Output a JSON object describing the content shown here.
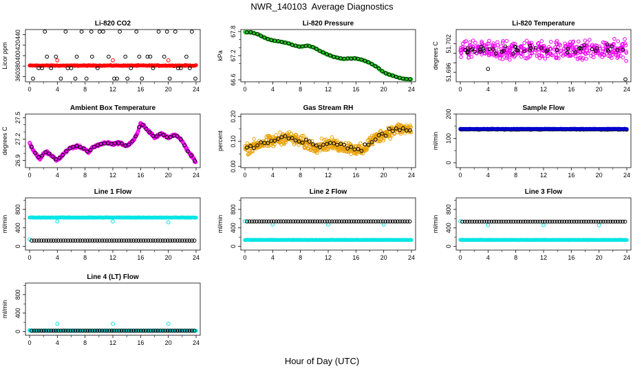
{
  "page": {
    "title": "NWR_140103  Average Diagnostics",
    "x_caption": "Hour of Day (UTC)"
  },
  "chart_data": [
    {
      "type": "scatter",
      "title": "Li-820 CO2",
      "ylabel": "Licor ppm",
      "xlim": [
        0,
        24
      ],
      "ylim": [
        350,
        450
      ],
      "yticks": [
        "360",
        "380",
        "400",
        "420",
        "440"
      ],
      "xticks": [
        "0",
        "4",
        "8",
        "12",
        "16",
        "20",
        "24"
      ],
      "series": [
        {
          "color": "#ff0000",
          "pattern": "dense-flat",
          "x_range": [
            0,
            24
          ],
          "level": 381,
          "noise": 1.2
        },
        {
          "color": "#ff0000",
          "pattern": "points",
          "x": [
            4,
            12,
            20
          ],
          "y": [
            391,
            391,
            391
          ]
        },
        {
          "color": "#000000",
          "pattern": "points",
          "x": [
            0.5,
            1.3,
            2.2,
            3.1,
            3.8,
            4.5,
            5.2,
            6.0,
            6.8,
            7.5,
            8.2,
            9.0,
            9.8,
            10.6,
            11.4,
            12.2,
            13.0,
            13.8,
            14.6,
            15.4,
            16.2,
            17.0,
            17.8,
            18.6,
            19.4,
            20.2,
            21.0,
            21.8,
            22.6,
            23.4,
            23.9,
            2.5,
            5.5,
            8.9,
            12.6,
            15.8,
            19.8,
            23.1,
            1.8,
            6.6,
            10.1,
            14.1,
            17.4,
            21.4
          ],
          "y": [
            356,
            376,
            446,
            376,
            398,
            356,
            446,
            376,
            398,
            446,
            356,
            398,
            376,
            446,
            398,
            356,
            446,
            398,
            376,
            446,
            356,
            398,
            376,
            446,
            398,
            356,
            446,
            376,
            398,
            446,
            356,
            398,
            376,
            446,
            356,
            398,
            446,
            376,
            376,
            356,
            446,
            356,
            398,
            376
          ]
        }
      ]
    },
    {
      "type": "scatter",
      "title": "Li-820 Pressure",
      "ylabel": "kPa",
      "xlim": [
        0,
        24
      ],
      "ylim": [
        66.55,
        67.85
      ],
      "yticks": [
        "66.6",
        "67.2",
        "67.8"
      ],
      "yticks_minor": [
        "67.0",
        "67.4",
        "67.6"
      ],
      "xticks": [
        "0",
        "4",
        "8",
        "12",
        "16",
        "20",
        "24"
      ],
      "series": [
        {
          "color": "#22cc22",
          "pattern": "dense-curve",
          "curve_x": [
            0,
            1,
            2,
            3,
            4,
            5,
            6,
            7,
            8,
            9,
            10,
            11,
            12,
            13,
            14,
            15,
            16,
            17,
            18,
            19,
            20,
            21,
            22,
            23,
            24
          ],
          "curve_y": [
            67.78,
            67.78,
            67.72,
            67.63,
            67.58,
            67.55,
            67.52,
            67.46,
            67.42,
            67.45,
            67.4,
            67.3,
            67.22,
            67.16,
            67.12,
            67.13,
            67.13,
            67.09,
            67.02,
            66.92,
            66.78,
            66.72,
            66.66,
            66.62,
            66.61
          ],
          "noise": 0.015
        },
        {
          "color": "#000000",
          "pattern": "sparse-curve",
          "step": 0.5,
          "noise": 0.01
        }
      ]
    },
    {
      "type": "scatter",
      "title": "Li-820 Temperature",
      "ylabel": "degrees C",
      "xlim": [
        0,
        24
      ],
      "ylim": [
        51.694,
        51.705
      ],
      "yticks": [
        "51.696",
        "51.698",
        "51.700",
        "51.702"
      ],
      "ytick_show": [
        true,
        false,
        false,
        true
      ],
      "xticks": [
        "0",
        "4",
        "8",
        "12",
        "16",
        "20",
        "24"
      ],
      "series": [
        {
          "color": "#ee00ee",
          "pattern": "dense-cloud",
          "center": 51.7007,
          "spread": 0.0028,
          "count": 420
        },
        {
          "color": "#000000",
          "pattern": "sparse-cloud",
          "center": 51.7008,
          "spread": 0.0013,
          "count": 48
        },
        {
          "color": "#000000",
          "pattern": "points",
          "x": [
            4,
            23.8
          ],
          "y": [
            51.6967,
            51.6945
          ]
        }
      ]
    },
    {
      "type": "scatter",
      "title": "Ambient Box Temperature",
      "ylabel": "degrees C",
      "xlim": [
        0,
        24
      ],
      "ylim": [
        26.8,
        27.55
      ],
      "yticks": [
        "26.9",
        "27.2",
        "27.5"
      ],
      "yticks_minor": [
        "27.0",
        "27.1",
        "27.3",
        "27.4"
      ],
      "xticks": [
        "0",
        "4",
        "8",
        "12",
        "16",
        "20",
        "24"
      ],
      "series": [
        {
          "color": "#ee00ee",
          "pattern": "dense-curve",
          "curve_x": [
            0,
            0.5,
            1,
            1.5,
            2,
            2.5,
            3,
            3.5,
            4,
            4.5,
            5,
            5.5,
            6,
            7,
            8,
            8.5,
            9,
            10,
            11,
            12,
            13,
            14,
            14.5,
            15,
            15.5,
            16,
            16.5,
            17,
            17.5,
            18,
            19,
            20,
            21,
            22,
            22.5,
            23,
            23.5,
            24
          ],
          "curve_y": [
            27.15,
            27.05,
            26.98,
            26.92,
            27.0,
            27.02,
            26.98,
            26.94,
            26.9,
            26.95,
            27.0,
            27.05,
            27.08,
            27.1,
            27.06,
            27.0,
            27.08,
            27.12,
            27.15,
            27.13,
            27.15,
            27.1,
            27.14,
            27.18,
            27.28,
            27.42,
            27.38,
            27.32,
            27.28,
            27.22,
            27.28,
            27.22,
            27.26,
            27.18,
            27.08,
            27.0,
            26.95,
            26.86
          ],
          "noise": 0.025
        },
        {
          "color": "#000000",
          "pattern": "sparse-curve",
          "step": 0.5,
          "noise": 0.01
        }
      ]
    },
    {
      "type": "scatter",
      "title": "Gas Stream RH",
      "ylabel": "percent",
      "xlim": [
        0,
        24
      ],
      "ylim": [
        -0.005,
        0.21
      ],
      "yticks": [
        "0.00",
        "0.10",
        "0.20"
      ],
      "yticks_minor": [
        "0.05",
        "0.15"
      ],
      "xticks": [
        "0",
        "4",
        "8",
        "12",
        "16",
        "20",
        "24"
      ],
      "series": [
        {
          "color": "#e8a000",
          "pattern": "dense-curve",
          "curve_x": [
            0,
            2,
            4,
            6,
            8,
            10,
            12,
            14,
            16,
            17,
            18,
            20,
            22,
            24
          ],
          "curve_y": [
            0.07,
            0.09,
            0.1,
            0.12,
            0.1,
            0.08,
            0.09,
            0.08,
            0.07,
            0.06,
            0.1,
            0.13,
            0.15,
            0.15
          ],
          "noise": 0.035
        },
        {
          "color": "#000000",
          "pattern": "sparse-curve",
          "step": 0.5,
          "noise": 0.02
        }
      ]
    },
    {
      "type": "scatter",
      "title": "Sample Flow",
      "ylabel": "ml/min",
      "xlim": [
        0,
        24
      ],
      "ylim": [
        -20,
        200
      ],
      "yticks": [
        "0",
        "100",
        "200"
      ],
      "yticks_minor": [
        "50",
        "150"
      ],
      "xticks": [
        "0",
        "4",
        "8",
        "12",
        "16",
        "20",
        "24"
      ],
      "series": [
        {
          "color": "#000000",
          "pattern": "dense-flat",
          "x_range": [
            0,
            24
          ],
          "level": 137,
          "noise": 2
        },
        {
          "color": "#0000cc",
          "pattern": "dense-flat",
          "x_range": [
            0,
            24
          ],
          "level": 139,
          "noise": 1.5
        }
      ]
    },
    {
      "type": "scatter",
      "title": "Line 1 Flow",
      "ylabel": "ml/min",
      "xlim": [
        0,
        24
      ],
      "ylim": [
        -80,
        1050
      ],
      "yticks": [
        "0",
        "400",
        "800"
      ],
      "yticks_minor": [
        "200",
        "600",
        "1000"
      ],
      "xticks": [
        "0",
        "4",
        "8",
        "12",
        "16",
        "20",
        "24"
      ],
      "series": [
        {
          "color": "#00e5e5",
          "pattern": "dense-flat",
          "x_range": [
            0,
            24
          ],
          "level": 625,
          "noise": 8
        },
        {
          "color": "#00e5e5",
          "pattern": "points",
          "x": [
            0,
            4,
            12,
            20
          ],
          "y": [
            150,
            540,
            540,
            520
          ]
        },
        {
          "color": "#000000",
          "pattern": "ring-row",
          "x_range": [
            0.3,
            24
          ],
          "level": 125
        }
      ]
    },
    {
      "type": "scatter",
      "title": "Line 2 Flow",
      "ylabel": "ml/min",
      "xlim": [
        0,
        24
      ],
      "ylim": [
        -80,
        1050
      ],
      "yticks": [
        "0",
        "400",
        "800"
      ],
      "yticks_minor": [
        "200",
        "600",
        "1000"
      ],
      "xticks": [
        "0",
        "4",
        "8",
        "12",
        "16",
        "20",
        "24"
      ],
      "series": [
        {
          "color": "#00e5e5",
          "pattern": "dense-flat",
          "x_range": [
            0,
            24
          ],
          "level": 140,
          "noise": 6
        },
        {
          "color": "#00e5e5",
          "pattern": "points",
          "x": [
            0,
            4,
            12,
            20
          ],
          "y": [
            545,
            475,
            475,
            475
          ]
        },
        {
          "color": "#000000",
          "pattern": "ring-row",
          "x_range": [
            0.3,
            24
          ],
          "level": 540
        }
      ]
    },
    {
      "type": "scatter",
      "title": "Line 3 Flow",
      "ylabel": "ml/min",
      "xlim": [
        0,
        24
      ],
      "ylim": [
        -80,
        1050
      ],
      "yticks": [
        "0",
        "400",
        "800"
      ],
      "yticks_minor": [
        "200",
        "600",
        "1000"
      ],
      "xticks": [
        "0",
        "4",
        "8",
        "12",
        "16",
        "20",
        "24"
      ],
      "series": [
        {
          "color": "#00e5e5",
          "pattern": "dense-flat",
          "x_range": [
            0,
            24
          ],
          "level": 140,
          "noise": 6
        },
        {
          "color": "#00e5e5",
          "pattern": "points",
          "x": [
            0,
            4,
            12,
            20
          ],
          "y": [
            545,
            460,
            460,
            460
          ]
        },
        {
          "color": "#000000",
          "pattern": "ring-row",
          "x_range": [
            0.3,
            24
          ],
          "level": 535
        }
      ]
    },
    {
      "type": "scatter",
      "title": "Line 4 (LT) Flow",
      "ylabel": "ml/min",
      "xlim": [
        0,
        24
      ],
      "ylim": [
        -80,
        1050
      ],
      "yticks": [
        "0",
        "400",
        "800"
      ],
      "yticks_minor": [
        "200",
        "600",
        "1000"
      ],
      "xticks": [
        "0",
        "4",
        "8",
        "12",
        "16",
        "20",
        "24"
      ],
      "series": [
        {
          "color": "#00e5e5",
          "pattern": "dense-flat",
          "x_range": [
            0,
            24
          ],
          "level": 20,
          "noise": 4
        },
        {
          "color": "#00e5e5",
          "pattern": "points",
          "x": [
            0,
            4,
            12,
            20
          ],
          "y": [
            30,
            170,
            170,
            170
          ]
        },
        {
          "color": "#000000",
          "pattern": "ring-row",
          "x_range": [
            0.3,
            24
          ],
          "level": 20
        }
      ]
    }
  ]
}
